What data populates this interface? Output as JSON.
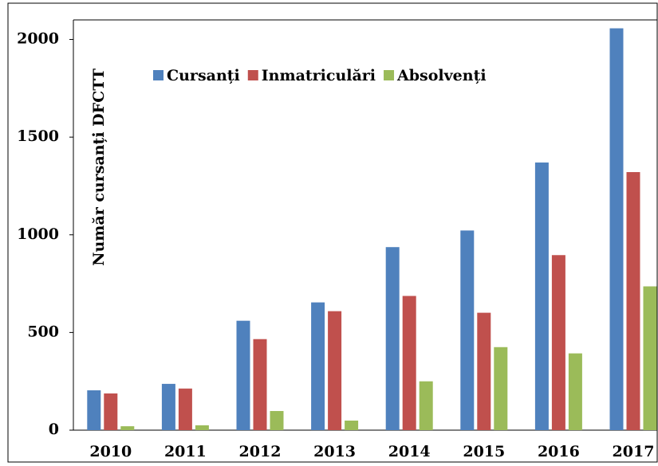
{
  "chart_data": {
    "type": "bar",
    "ylabel": "Număr cursanți DFCTT",
    "categories": [
      "2010",
      "2011",
      "2012",
      "2013",
      "2014",
      "2015",
      "2016",
      "2017"
    ],
    "series": [
      {
        "name": "Cursanți",
        "color": "#4f81bd",
        "values": [
          204,
          237,
          560,
          654,
          937,
          1022,
          1370,
          2057
        ]
      },
      {
        "name": "Inmatriculări",
        "color": "#c0504d",
        "values": [
          188,
          213,
          466,
          609,
          687,
          601,
          896,
          1321
        ]
      },
      {
        "name": "Absolvenți",
        "color": "#9bbb59",
        "values": [
          20,
          25,
          98,
          49,
          250,
          425,
          393,
          736
        ]
      }
    ],
    "ylim": [
      0,
      2100
    ],
    "yticks": [
      0,
      500,
      1000,
      1500,
      2000
    ],
    "grid": false
  }
}
